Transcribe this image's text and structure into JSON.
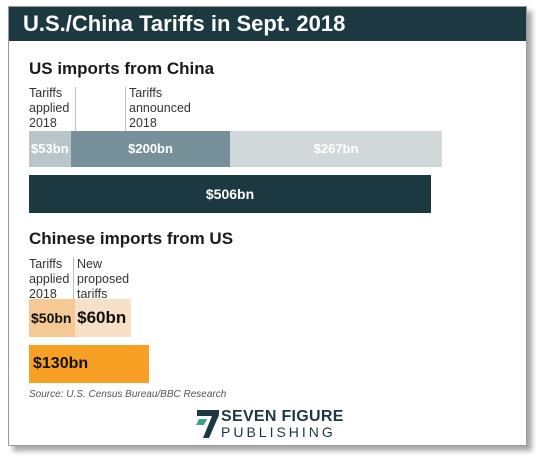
{
  "title": "U.S./China Tariffs in Sept. 2018",
  "sections": [
    {
      "heading": "US imports from China",
      "column_labels": [
        "Tariffs applied 2018",
        "Tariffs announced 2018"
      ]
    },
    {
      "heading": "Chinese imports from US",
      "column_labels": [
        "Tariffs applied 2018",
        "New proposed tariffs"
      ]
    }
  ],
  "chart_data": [
    {
      "type": "bar",
      "title": "US imports from China",
      "stacked_bar": [
        {
          "label": "$53bn",
          "value": 53,
          "color": "#b9c5c8"
        },
        {
          "label": "$200bn",
          "value": 200,
          "color": "#78909a"
        },
        {
          "label": "$267bn",
          "value": 267,
          "color": "#d1d8da"
        }
      ],
      "total_bar": {
        "label": "$506bn",
        "value": 506,
        "color": "#1c3942"
      }
    },
    {
      "type": "bar",
      "title": "Chinese imports from US",
      "stacked_bar": [
        {
          "label": "$50bn",
          "value": 50,
          "color": "#f4c993"
        },
        {
          "label": "$60bn",
          "value": 60,
          "color": "#f6e0c8"
        }
      ],
      "total_bar": {
        "label": "$130bn",
        "value": 130,
        "color": "#f7a023"
      }
    }
  ],
  "source": "Source: U.S. Census Bureau/BBC Research",
  "logo": {
    "line1": "SEVEN FIGURE",
    "line2": "PUBLISHING"
  },
  "colors": {
    "header": "#1c3942",
    "accent": "#f7a023"
  }
}
